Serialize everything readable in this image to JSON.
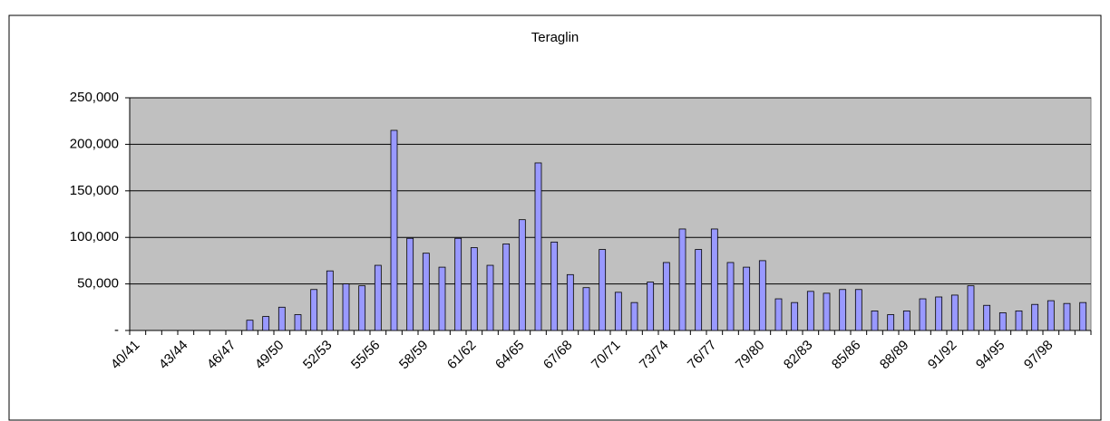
{
  "chart_data": {
    "type": "bar",
    "title": "Teraglin",
    "categories": [
      "40/41",
      null,
      null,
      "43/44",
      null,
      null,
      "46/47",
      null,
      null,
      "49/50",
      null,
      null,
      "52/53",
      null,
      null,
      "55/56",
      null,
      null,
      "58/59",
      null,
      null,
      "61/62",
      null,
      null,
      "64/65",
      null,
      null,
      "67/68",
      null,
      null,
      "70/71",
      null,
      null,
      "73/74",
      null,
      null,
      "76/77",
      null,
      null,
      "79/80",
      null,
      null,
      "82/83",
      null,
      null,
      "85/86",
      null,
      null,
      "88/89",
      null,
      null,
      "91/92",
      null,
      null,
      "94/95",
      null,
      null,
      "97/98",
      null,
      null
    ],
    "values": [
      null,
      null,
      null,
      null,
      null,
      null,
      null,
      11000,
      15000,
      25000,
      17000,
      44000,
      64000,
      50000,
      48000,
      70000,
      215000,
      99000,
      83000,
      68000,
      99000,
      89000,
      70000,
      93000,
      119000,
      180000,
      95000,
      60000,
      46000,
      87000,
      41000,
      30000,
      52000,
      73000,
      109000,
      87000,
      109000,
      73000,
      68000,
      75000,
      34000,
      30000,
      42000,
      40000,
      44000,
      44000,
      21000,
      17000,
      21000,
      34000,
      36000,
      38000,
      48000,
      27000,
      19000,
      21000,
      28000,
      32000,
      29000,
      30000
    ],
    "color": "#9999ff",
    "ylim": [
      0,
      250000
    ],
    "yticks": [
      {
        "value": 0,
        "label": "-"
      },
      {
        "value": 50000,
        "label": "50,000"
      },
      {
        "value": 100000,
        "label": "100,000"
      },
      {
        "value": 150000,
        "label": "150,000"
      },
      {
        "value": 200000,
        "label": "200,000"
      },
      {
        "value": 250000,
        "label": "250,000"
      }
    ],
    "grid": true
  }
}
